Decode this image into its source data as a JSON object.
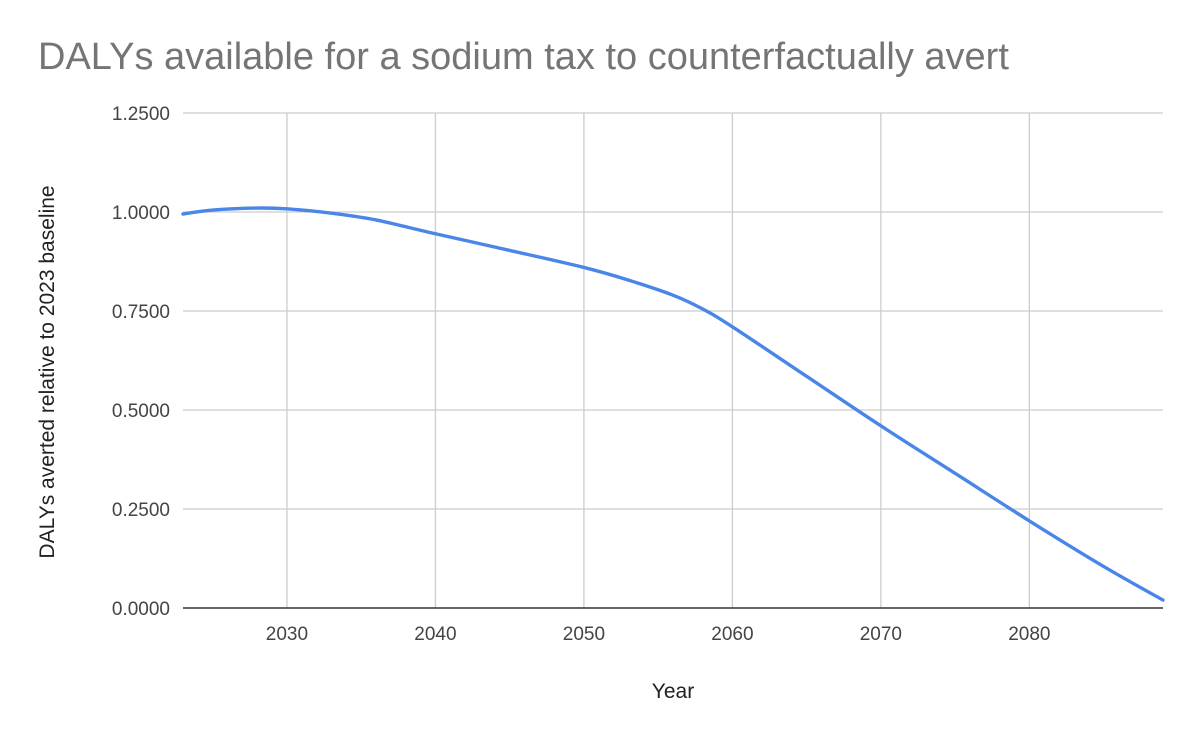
{
  "chart_data": {
    "type": "line",
    "title": "DALYs available for a sodium tax to counterfactually avert",
    "xlabel": "Year",
    "ylabel": "DALYs averted relative to 2023 baseline",
    "xlim": [
      2023,
      2089
    ],
    "ylim": [
      0,
      1.25
    ],
    "x_ticks": [
      2030,
      2040,
      2050,
      2060,
      2070,
      2080
    ],
    "x_tick_labels": [
      "2030",
      "2040",
      "2050",
      "2060",
      "2070",
      "2080"
    ],
    "y_ticks": [
      0,
      0.25,
      0.5,
      0.75,
      1.0,
      1.25
    ],
    "y_tick_labels": [
      "0.0000",
      "0.2500",
      "0.5000",
      "0.7500",
      "1.0000",
      "1.2500"
    ],
    "grid": true,
    "legend": "none",
    "series": [
      {
        "color": "#4a86e8",
        "x": [
          2023,
          2025,
          2028,
          2030,
          2033,
          2036,
          2040,
          2045,
          2050,
          2053,
          2056,
          2058,
          2060,
          2065,
          2070,
          2075,
          2080,
          2085,
          2089
        ],
        "y": [
          0.995,
          1.005,
          1.01,
          1.008,
          0.997,
          0.98,
          0.945,
          0.903,
          0.86,
          0.828,
          0.79,
          0.755,
          0.71,
          0.585,
          0.46,
          0.34,
          0.22,
          0.105,
          0.02
        ]
      }
    ]
  }
}
